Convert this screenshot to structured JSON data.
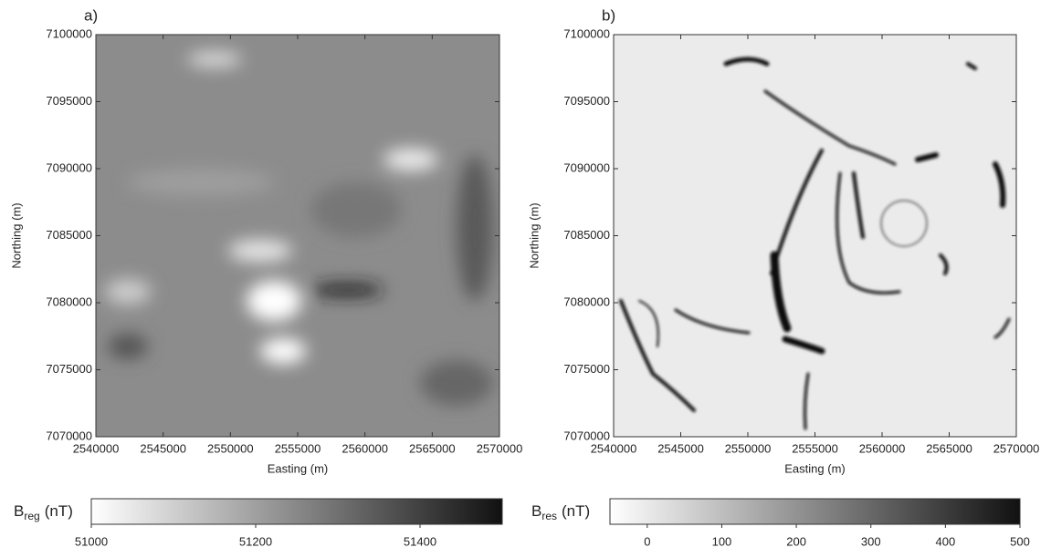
{
  "chart_data": [
    {
      "type": "heatmap",
      "panel_label": "a)",
      "xlabel": "Easting (m)",
      "ylabel": "Northing (m)",
      "xlim": [
        2540000,
        2570000
      ],
      "xticks": [
        2540000,
        2545000,
        2550000,
        2555000,
        2560000,
        2565000,
        2570000
      ],
      "ylim": [
        7070000,
        7100000
      ],
      "yticks": [
        7070000,
        7075000,
        7080000,
        7085000,
        7090000,
        7095000,
        7100000
      ],
      "colorbar": {
        "label": "B",
        "label_sub": "reg",
        "label_unit": "(nT)",
        "lim": [
          51000,
          51500
        ],
        "ticks": [
          51000,
          51200,
          51400
        ],
        "colors": [
          "#ffffff",
          "#111111"
        ]
      }
    },
    {
      "type": "heatmap",
      "panel_label": "b)",
      "xlabel": "Easting (m)",
      "ylabel": "Northing (m)",
      "xlim": [
        2540000,
        2570000
      ],
      "xticks": [
        2540000,
        2545000,
        2550000,
        2555000,
        2560000,
        2565000,
        2570000
      ],
      "ylim": [
        7070000,
        7100000
      ],
      "yticks": [
        7070000,
        7075000,
        7080000,
        7085000,
        7090000,
        7095000,
        7100000
      ],
      "colorbar": {
        "label": "B",
        "label_sub": "res",
        "label_unit": "(nT)",
        "lim": [
          -50,
          500
        ],
        "ticks": [
          0,
          100,
          200,
          300,
          400,
          500
        ],
        "colors": [
          "#ffffff",
          "#111111"
        ]
      }
    }
  ]
}
